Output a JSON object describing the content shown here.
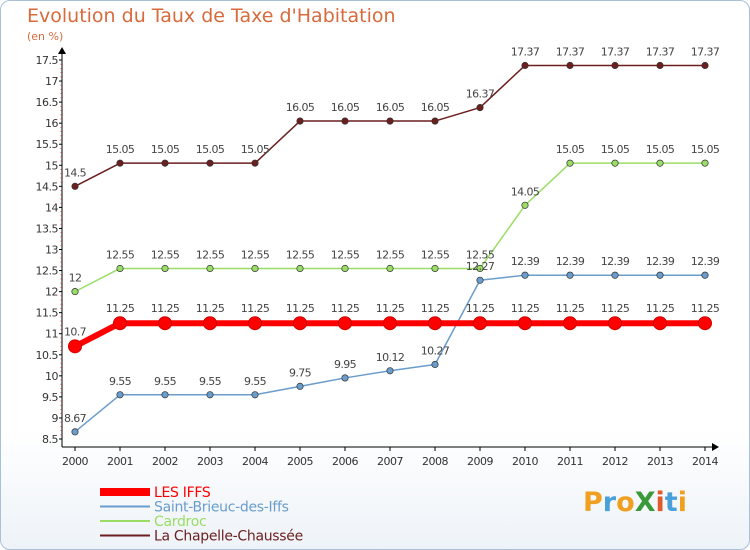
{
  "title": "Evolution du Taux de Taxe d'Habitation",
  "subtitle": "(en %)",
  "logo": "ProXiti",
  "chart_data": {
    "type": "line",
    "x": [
      "2000",
      "2001",
      "2002",
      "2003",
      "2004",
      "2005",
      "2006",
      "2007",
      "2008",
      "2009",
      "2010",
      "2011",
      "2012",
      "2013",
      "2014"
    ],
    "ylim": [
      8.5,
      17.5
    ],
    "yticks": [
      "8.5",
      "9",
      "9.5",
      "10",
      "10.5",
      "11",
      "11.5",
      "12",
      "12.5",
      "13",
      "13.5",
      "14",
      "14.5",
      "15",
      "15.5",
      "16",
      "16.5",
      "17",
      "17.5"
    ],
    "grid": false,
    "legend_position": "bottom-left",
    "series": [
      {
        "name": "La Chapelle-Chaussée",
        "color": "#6b1f1f",
        "values": [
          14.5,
          15.05,
          15.05,
          15.05,
          15.05,
          16.05,
          16.05,
          16.05,
          16.05,
          16.37,
          17.37,
          17.37,
          17.37,
          17.37,
          17.37
        ],
        "labels": [
          "14.5",
          "15.05",
          "15.05",
          "15.05",
          "15.05",
          "16.05",
          "16.05",
          "16.05",
          "16.05",
          "16.37",
          "17.37",
          "17.37",
          "17.37",
          "17.37",
          "17.37"
        ]
      },
      {
        "name": "Cardroc",
        "color": "#99dd66",
        "values": [
          12,
          12.55,
          12.55,
          12.55,
          12.55,
          12.55,
          12.55,
          12.55,
          12.55,
          12.55,
          14.05,
          15.05,
          15.05,
          15.05,
          15.05
        ],
        "labels": [
          "12",
          "12.55",
          "12.55",
          "12.55",
          "12.55",
          "12.55",
          "12.55",
          "12.55",
          "12.55",
          "12.55",
          "14.05",
          "15.05",
          "15.05",
          "15.05",
          "15.05"
        ]
      },
      {
        "name": "Saint-Brieuc-des-Iffs",
        "color": "#6a9ccc",
        "values": [
          8.67,
          9.55,
          9.55,
          9.55,
          9.55,
          9.75,
          9.95,
          10.12,
          10.27,
          12.27,
          12.39,
          12.39,
          12.39,
          12.39,
          12.39
        ],
        "labels": [
          "8.67",
          "9.55",
          "9.55",
          "9.55",
          "9.55",
          "9.75",
          "9.95",
          "10.12",
          "10.27",
          "12.27",
          "12.39",
          "12.39",
          "12.39",
          "12.39",
          "12.39"
        ]
      },
      {
        "name": "LES IFFS",
        "color": "#ff0000",
        "values": [
          10.7,
          11.25,
          11.25,
          11.25,
          11.25,
          11.25,
          11.25,
          11.25,
          11.25,
          11.25,
          11.25,
          11.25,
          11.25,
          11.25,
          11.25
        ],
        "labels": [
          "10.7",
          "11.25",
          "11.25",
          "11.25",
          "11.25",
          "11.25",
          "11.25",
          "11.25",
          "11.25",
          "11.25",
          "11.25",
          "11.25",
          "11.25",
          "11.25",
          "11.25"
        ]
      }
    ],
    "legend": [
      {
        "name": "LES IFFS",
        "color": "#ff0000"
      },
      {
        "name": "Saint-Brieuc-des-Iffs",
        "color": "#6a9ccc"
      },
      {
        "name": "Cardroc",
        "color": "#99dd66"
      },
      {
        "name": "La Chapelle-Chaussée",
        "color": "#6b1f1f"
      }
    ]
  }
}
